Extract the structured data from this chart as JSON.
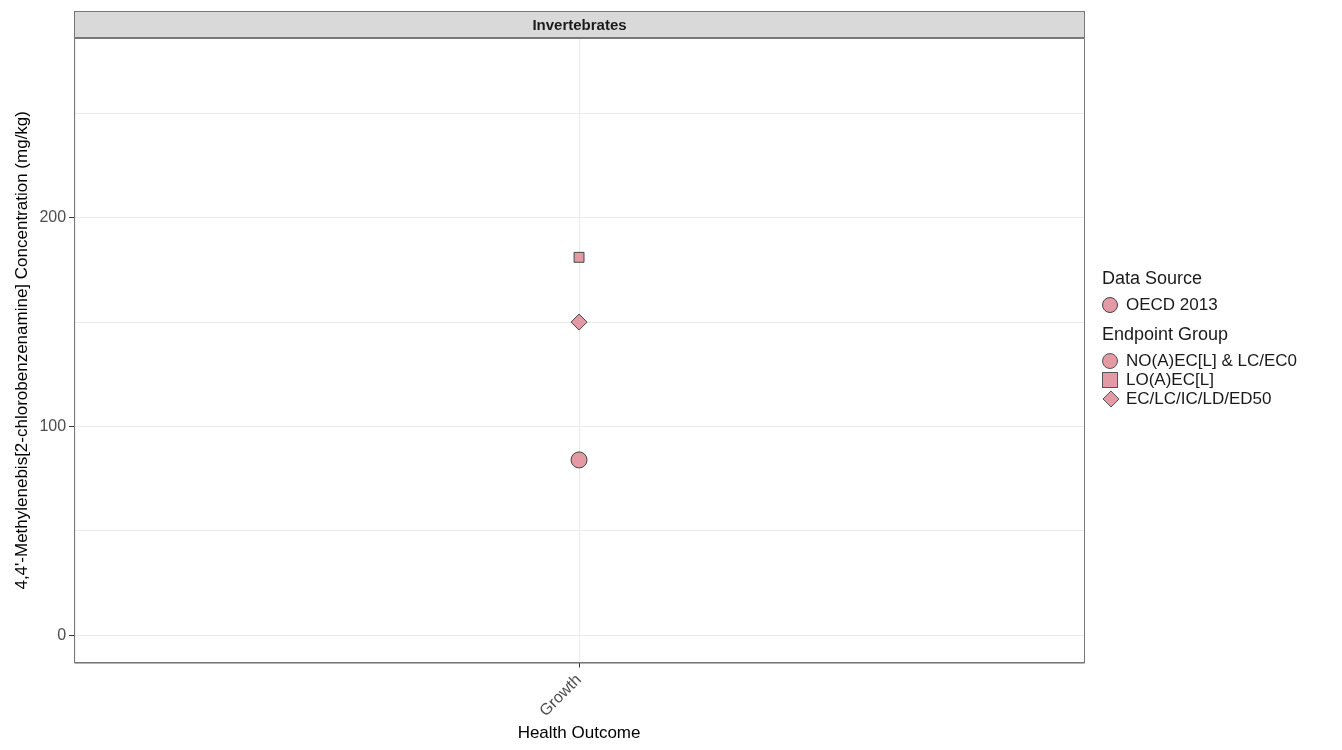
{
  "chart_data": {
    "type": "scatter",
    "title": "Invertebrates",
    "xlabel": "Health Outcome",
    "ylabel": "4,4'-Methylenebis[2-chlorobenzenamine] Concentration (mg/kg)",
    "legend_title": "Endpoint Group",
    "annotations": [
      "Data Source",
      "OECD 2013"
    ],
    "categories": [
      "Growth"
    ],
    "series": [
      {
        "name": "NO(A)EC[L] & LC/EC0",
        "marker": "circle",
        "color": "#e39aa4",
        "values": [
          84
        ]
      },
      {
        "name": "LO(A)EC[L]",
        "marker": "square",
        "color": "#e39aa4",
        "values": [
          181
        ]
      },
      {
        "name": "EC/LC/IC/LD/ED50",
        "marker": "diamond",
        "color": "#e39aa4",
        "values": [
          150
        ]
      }
    ],
    "ylim": [
      -13,
      286
    ],
    "yticks": [
      0,
      {
        "value": 50,
        "label": null
      },
      100,
      {
        "value": 150,
        "label": null
      },
      200,
      {
        "value": 250,
        "label": null
      }
    ],
    "grid": true,
    "legend": "right"
  }
}
